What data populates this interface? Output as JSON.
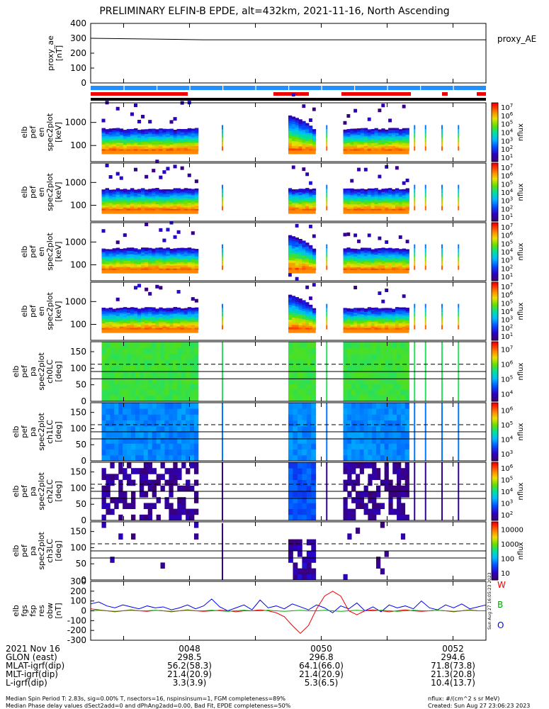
{
  "title": "PRELIMINARY ELFIN-B EPDE, alt=432km, 2021-11-16, North Ascending",
  "proxy_panel": {
    "ylabel": [
      "proxy_ae",
      "[nT]"
    ],
    "legend": "proxy_AE"
  },
  "spectro_panels": [
    {
      "ylabel": [
        "elb",
        "pef",
        "en",
        "spec2plot",
        "[keV]"
      ],
      "cbar_label": "nflux"
    },
    {
      "ylabel": [
        "elb",
        "pef",
        "en",
        "spec2plot",
        "[keV]"
      ],
      "cbar_label": "nflux"
    },
    {
      "ylabel": [
        "elb",
        "pef",
        "en",
        "spec2plot",
        "[keV]"
      ],
      "cbar_label": "nflux"
    },
    {
      "ylabel": [
        "elb",
        "pef",
        "en",
        "spec2plot",
        "[keV]"
      ],
      "cbar_label": "nflux"
    }
  ],
  "pa_panels": [
    {
      "ylabel": [
        "elb",
        "pef",
        "pa",
        "spec2plot",
        "ch0LC",
        "[deg]"
      ],
      "cbar_label": "nflux"
    },
    {
      "ylabel": [
        "elb",
        "pef",
        "pa",
        "spec2plot",
        "ch1LC",
        "[deg]"
      ],
      "cbar_label": "nflux"
    },
    {
      "ylabel": [
        "elb",
        "pef",
        "pa",
        "spec2plot",
        "ch2LC",
        "[deg]"
      ],
      "cbar_label": "nflux"
    },
    {
      "ylabel": [
        "elb",
        "pef",
        "pa",
        "spec2plot",
        "ch3LC",
        "[deg]"
      ],
      "cbar_label": "nflux"
    }
  ],
  "field_panel": {
    "ylabel": [
      "elb",
      "fgs",
      "fsp",
      "res",
      "obw",
      "[nT]"
    ],
    "legend": [
      "W",
      "B",
      "O"
    ],
    "side_text": "Sun Aug 27 16:05:23 2023"
  },
  "footer": {
    "rows": [
      {
        "label": "2021 Nov 16",
        "values": [
          "0048",
          "0050",
          "0052"
        ]
      },
      {
        "label": "GLON (east)",
        "values": [
          "298.5",
          "296.8",
          "294.6"
        ]
      },
      {
        "label": "MLAT-igrf(dip)",
        "values": [
          "56.2(58.3)",
          "64.1(66.0)",
          "71.8(73.8)"
        ]
      },
      {
        "label": "MLT-igrf(dip)",
        "values": [
          "21.4(20.9)",
          "21.4(20.9)",
          "21.3(20.8)"
        ]
      },
      {
        "label": "L-igrf(dip)",
        "values": [
          "3.3(3.9)",
          "5.3(6.5)",
          "10.4(13.7)"
        ]
      }
    ],
    "notes": [
      "Median Spin Period T: 2.83s, sig=0.00% T, nsectors=16, nspinsinsum=1, FGM completeness=89%",
      "Median Phase delay values dSect2add=0 and dPhAng2add=0.00, Bad Fit, EPDE completeness=50%"
    ],
    "right_notes": [
      "nflux: #/(cm^2 s sr MeV)",
      "Created: Sun Aug 27 23:06:23 2023"
    ]
  },
  "colors": {
    "ae_line": "#000000",
    "bar_blue": "#1e90ff",
    "bar_red": "#ee0000",
    "field_W": "#ee0000",
    "field_B": "#00aa00",
    "field_O": "#0000ee"
  },
  "chart_data": [
    {
      "type": "line",
      "name": "proxy_ae",
      "ylim": [
        0,
        400
      ],
      "yticks": [
        0,
        100,
        200,
        300,
        400
      ],
      "series": [
        {
          "name": "proxy_AE",
          "values": [
            300,
            295,
            290,
            290,
            290,
            290,
            290,
            290
          ]
        }
      ]
    },
    {
      "type": "heatmap",
      "name": "energy spectrograms",
      "ylabel": "[keV]",
      "yscale": "log",
      "yticks": [
        100,
        1000
      ],
      "colorbar": {
        "scale": "log",
        "ticks": [
          "10^1",
          "10^2",
          "10^3",
          "10^4",
          "10^5",
          "10^6",
          "10^7"
        ]
      },
      "data_intervals_utc": [
        [
          "00:46:40",
          "00:48:08"
        ],
        [
          "00:49:30",
          "00:49:55"
        ],
        [
          "00:50:20",
          "00:51:20"
        ]
      ],
      "spikes_utc": [
        "00:48:30",
        "00:50:05",
        "00:51:25",
        "00:51:35",
        "00:51:50",
        "00:52:05"
      ]
    },
    {
      "type": "heatmap",
      "name": "pitch angle spectrograms",
      "ylabel": "[deg]",
      "ylim": [
        0,
        180
      ],
      "yticks": [
        0,
        50,
        100,
        150
      ],
      "reference_lines_deg": {
        "solid": [
          68,
          90
        ],
        "dashed": [
          112
        ]
      },
      "colorbar_ticks": [
        [
          "10^4",
          "10^5",
          "10^6",
          "10^7"
        ],
        [
          "10^3",
          "10^4",
          "10^5",
          "10^6"
        ],
        [
          "10^2",
          "10^3",
          "10^4",
          "10^5",
          "10^6"
        ],
        [
          "10",
          "100",
          "1000",
          "10000"
        ]
      ]
    },
    {
      "type": "line",
      "name": "fgs residuals",
      "ylim": [
        -300,
        300
      ],
      "yticks": [
        -300,
        -200,
        -100,
        0,
        100,
        200,
        300
      ],
      "series": [
        {
          "name": "W",
          "values": [
            20,
            10,
            0,
            -10,
            0,
            10,
            0,
            -5,
            5,
            0,
            -10,
            0,
            10,
            0,
            -5,
            0,
            5,
            0,
            -10,
            0,
            0,
            10,
            0,
            -20,
            -60,
            -150,
            -230,
            -150,
            20,
            150,
            200,
            150,
            0,
            -40,
            0,
            10,
            0,
            -10,
            0,
            10,
            0,
            -5,
            0,
            5,
            0,
            -10,
            0,
            10,
            0,
            0
          ]
        },
        {
          "name": "B",
          "values": [
            0,
            5,
            0,
            -5,
            0,
            5,
            0,
            0,
            5,
            0,
            -5,
            0,
            5,
            0,
            0,
            5,
            0,
            -5,
            0,
            5,
            0,
            0,
            5,
            0,
            -5,
            0,
            5,
            0,
            0,
            5,
            0,
            -5,
            0,
            5,
            0,
            0,
            5,
            0,
            -5,
            0,
            5,
            0,
            0,
            5,
            0,
            -5,
            0,
            5,
            0,
            0
          ]
        },
        {
          "name": "O",
          "values": [
            70,
            90,
            50,
            30,
            60,
            40,
            20,
            50,
            30,
            40,
            10,
            30,
            60,
            20,
            50,
            120,
            40,
            0,
            30,
            60,
            10,
            110,
            30,
            50,
            20,
            70,
            40,
            10,
            60,
            30,
            -20,
            50,
            20,
            80,
            0,
            40,
            -10,
            60,
            30,
            50,
            20,
            100,
            30,
            10,
            60,
            30,
            70,
            20,
            40,
            60
          ]
        }
      ]
    }
  ]
}
